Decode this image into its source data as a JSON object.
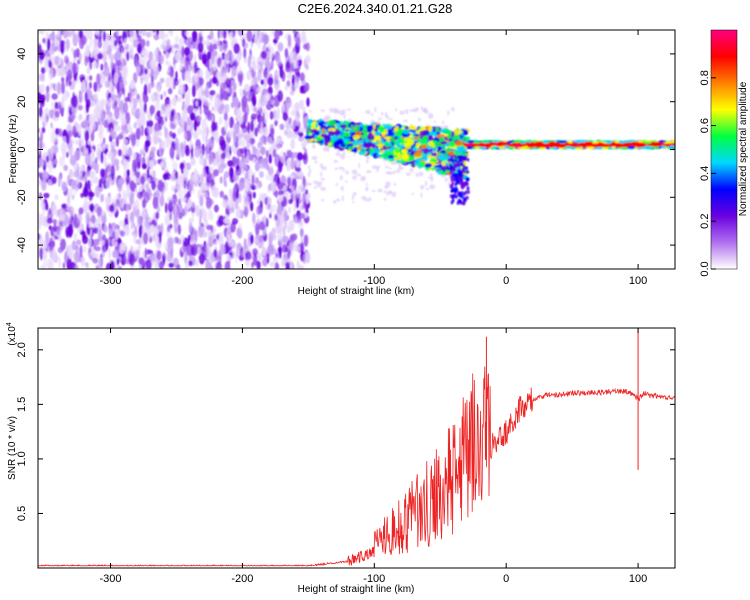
{
  "title": "C2E6.2024.340.01.21.G28",
  "chart_data": [
    {
      "type": "heatmap",
      "xlabel": "Height of straight line (km)",
      "ylabel": "Frequency (Hz)",
      "xlim": [
        -355,
        128
      ],
      "ylim": [
        -50,
        50
      ],
      "x_ticks": [
        -300,
        -200,
        -100,
        0,
        100
      ],
      "y_ticks": [
        -40,
        -20,
        0,
        20,
        40
      ],
      "colorbar": {
        "label": "Normalized spectral amplitude",
        "range": [
          0,
          1
        ],
        "ticks": [
          "0.0",
          "0.2",
          "0.4",
          "0.6",
          "0.8"
        ],
        "colors": [
          "#ffffff",
          "#b070f0",
          "#6a00e0",
          "#0000ff",
          "#00d8ff",
          "#00ff40",
          "#ffff00",
          "#ff8000",
          "#ff0000",
          "#ff0080"
        ]
      },
      "regions": [
        {
          "x_range": [
            -355,
            -150
          ],
          "y_range": [
            -50,
            50
          ],
          "amplitude": 0.15
        },
        {
          "x_range": [
            -150,
            -30
          ],
          "y_center_start": 8,
          "y_center_end": -2,
          "amplitude": 0.55
        },
        {
          "x_range": [
            -30,
            128
          ],
          "y_center": 2,
          "amplitude": 0.9
        }
      ]
    },
    {
      "type": "line",
      "xlabel": "Height of straight line (km)",
      "ylabel": "SNR (10 * v/v)",
      "y_multiplier": "(x10",
      "y_multiplier_exp": "4",
      "xlim": [
        -355,
        128
      ],
      "ylim": [
        0,
        2.2
      ],
      "x_ticks": [
        -300,
        -200,
        -100,
        0,
        100
      ],
      "y_ticks": [
        "0.5",
        "1.0",
        "1.5",
        "2.0"
      ],
      "series": [
        {
          "color": "#ee2222",
          "x": [
            -355,
            -300,
            -250,
            -200,
            -150,
            -120,
            -100,
            -80,
            -60,
            -50,
            -40,
            -30,
            -25,
            -20,
            -15,
            -10,
            -5,
            0,
            10,
            20,
            30,
            50,
            70,
            90,
            95,
            100,
            105,
            110,
            120,
            128
          ],
          "y": [
            0.02,
            0.02,
            0.02,
            0.02,
            0.02,
            0.06,
            0.15,
            0.2,
            0.3,
            0.4,
            0.5,
            0.75,
            0.85,
            0.9,
            1.0,
            1.15,
            1.2,
            1.25,
            1.45,
            1.55,
            1.58,
            1.6,
            1.61,
            1.62,
            1.6,
            1.55,
            1.6,
            1.58,
            1.57,
            1.56
          ]
        }
      ],
      "annotations": [
        {
          "x": -15,
          "y": 2.12
        },
        {
          "x": 100,
          "y": 2.2
        },
        {
          "x": 100,
          "y": 0.9
        }
      ]
    }
  ]
}
